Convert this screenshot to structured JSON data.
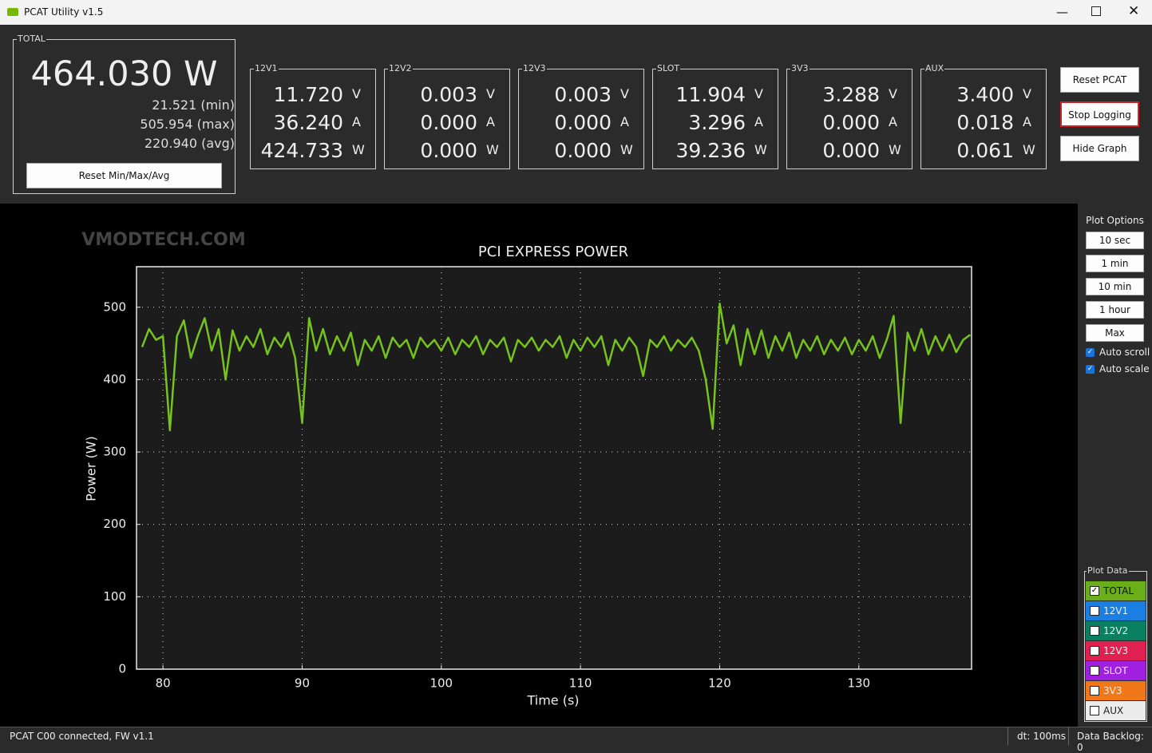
{
  "window": {
    "title": "PCAT Utility v1.5"
  },
  "watermark": "VMODTECH.COM",
  "total": {
    "label": "TOTAL",
    "value": "464.030 W",
    "min": "21.521 (min)",
    "max": "505.954 (max)",
    "avg": "220.940 (avg)",
    "reset": "Reset Min/Max/Avg"
  },
  "channels": [
    {
      "name": "12V1",
      "rows": [
        [
          "11.720",
          "V"
        ],
        [
          "36.240",
          "A"
        ],
        [
          "424.733",
          "W"
        ]
      ]
    },
    {
      "name": "12V2",
      "rows": [
        [
          "0.003",
          "V"
        ],
        [
          "0.000",
          "A"
        ],
        [
          "0.000",
          "W"
        ]
      ]
    },
    {
      "name": "12V3",
      "rows": [
        [
          "0.003",
          "V"
        ],
        [
          "0.000",
          "A"
        ],
        [
          "0.000",
          "W"
        ]
      ]
    },
    {
      "name": "SLOT",
      "rows": [
        [
          "11.904",
          "V"
        ],
        [
          "3.296",
          "A"
        ],
        [
          "39.236",
          "W"
        ]
      ]
    },
    {
      "name": "3V3",
      "rows": [
        [
          "3.288",
          "V"
        ],
        [
          "0.000",
          "A"
        ],
        [
          "0.000",
          "W"
        ]
      ]
    },
    {
      "name": "AUX",
      "rows": [
        [
          "3.400",
          "V"
        ],
        [
          "0.018",
          "A"
        ],
        [
          "0.061",
          "W"
        ]
      ]
    }
  ],
  "buttons": [
    "Reset PCAT",
    "Stop Logging",
    "Hide Graph"
  ],
  "plot_options": {
    "title": "Plot Options",
    "ranges": [
      "10 sec",
      "1 min",
      "10 min",
      "1 hour",
      "Max"
    ],
    "checks": [
      "Auto scroll",
      "Auto scale"
    ]
  },
  "plot_data": {
    "title": "Plot Data",
    "items": [
      {
        "name": "TOTAL",
        "color": "#6aae1a",
        "checked": true
      },
      {
        "name": "12V1",
        "color": "#1a7fe0",
        "checked": false
      },
      {
        "name": "12V2",
        "color": "#0b8060",
        "checked": false
      },
      {
        "name": "12V3",
        "color": "#e02050",
        "checked": false
      },
      {
        "name": "SLOT",
        "color": "#a020e0",
        "checked": false
      },
      {
        "name": "3V3",
        "color": "#f07818",
        "checked": false
      },
      {
        "name": "AUX",
        "color": "#ececec",
        "checked": false
      }
    ]
  },
  "status": {
    "left": "PCAT C00 connected, FW v1.1",
    "dt": "dt: 100ms",
    "backlog": "Data Backlog: 0"
  },
  "chart_data": {
    "type": "line",
    "title": "PCI EXPRESS POWER",
    "x_label": "Time (s)",
    "y_label": "Power (W)",
    "color": "#76c31c",
    "grid": true,
    "xlim": [
      78.1,
      138.1
    ],
    "ylim": [
      0,
      556
    ],
    "xticks": [
      80,
      90,
      100,
      110,
      120,
      130
    ],
    "yticks": [
      0,
      100,
      200,
      300,
      400,
      500
    ],
    "x": [
      78.5,
      79,
      79.5,
      80,
      80.5,
      81,
      81.5,
      82,
      82.5,
      83,
      83.5,
      84,
      84.5,
      85,
      85.5,
      86,
      86.5,
      87,
      87.5,
      88,
      88.5,
      89,
      89.5,
      90,
      90.5,
      91,
      91.5,
      92,
      92.5,
      93,
      93.5,
      94,
      94.5,
      95,
      95.5,
      96,
      96.5,
      97,
      97.5,
      98,
      98.5,
      99,
      99.5,
      100,
      100.5,
      101,
      101.5,
      102,
      102.5,
      103,
      103.5,
      104,
      104.5,
      105,
      105.5,
      106,
      106.5,
      107,
      107.5,
      108,
      108.5,
      109,
      109.5,
      110,
      110.5,
      111,
      111.5,
      112,
      112.5,
      113,
      113.5,
      114,
      114.5,
      115,
      115.5,
      116,
      116.5,
      117,
      117.5,
      118,
      118.5,
      119,
      119.5,
      120,
      120.5,
      121,
      121.5,
      122,
      122.5,
      123,
      123.5,
      124,
      124.5,
      125,
      125.5,
      126,
      126.5,
      127,
      127.5,
      128,
      128.5,
      129,
      129.5,
      130,
      130.5,
      131,
      131.5,
      132,
      132.5,
      133,
      133.5,
      134,
      134.5,
      135,
      135.5,
      136,
      136.5,
      137,
      137.5,
      138
    ],
    "values": [
      445,
      470,
      455,
      460,
      330,
      460,
      482,
      430,
      460,
      485,
      440,
      470,
      400,
      468,
      440,
      460,
      445,
      470,
      435,
      458,
      445,
      465,
      430,
      340,
      485,
      440,
      470,
      435,
      460,
      440,
      465,
      420,
      455,
      440,
      460,
      430,
      458,
      445,
      455,
      430,
      458,
      445,
      455,
      440,
      458,
      435,
      455,
      445,
      460,
      435,
      455,
      445,
      458,
      425,
      455,
      445,
      458,
      440,
      455,
      445,
      460,
      430,
      455,
      440,
      458,
      445,
      460,
      420,
      455,
      440,
      458,
      445,
      405,
      455,
      445,
      460,
      440,
      455,
      445,
      458,
      440,
      400,
      332,
      505,
      450,
      475,
      420,
      470,
      435,
      468,
      430,
      460,
      440,
      465,
      430,
      455,
      440,
      460,
      435,
      455,
      440,
      458,
      435,
      455,
      440,
      460,
      430,
      455,
      488,
      340,
      465,
      440,
      470,
      435,
      460,
      440,
      462,
      438,
      455,
      462
    ]
  }
}
